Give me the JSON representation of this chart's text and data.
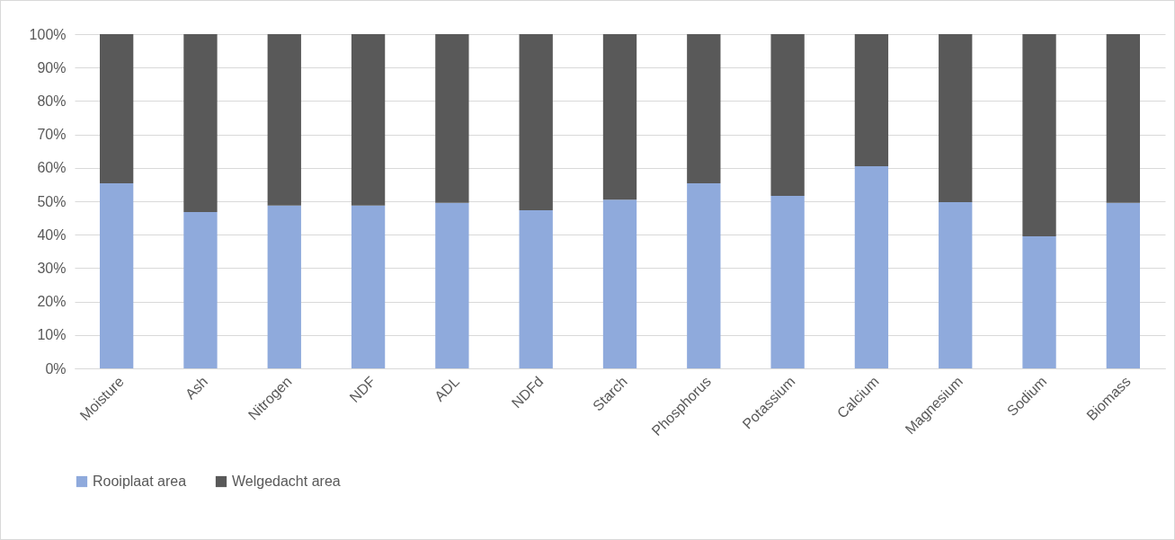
{
  "chart_data": {
    "type": "bar",
    "stacked": true,
    "categories": [
      "Moisture",
      "Ash",
      "Nitrogen",
      "NDF",
      "ADL",
      "NDFd",
      "Starch",
      "Phosphorus",
      "Potassium",
      "Calcium",
      "Magnesium",
      "Sodium",
      "Biomass"
    ],
    "series": [
      {
        "name": "Rooiplaat area",
        "color": "#8faadc",
        "values": [
          55.4,
          46.8,
          48.7,
          48.7,
          49.5,
          47.3,
          50.5,
          55.4,
          51.6,
          60.5,
          49.7,
          39.5,
          49.5
        ]
      },
      {
        "name": "Welgedacht area",
        "color": "#595959",
        "values": [
          44.6,
          53.2,
          51.3,
          51.3,
          50.5,
          52.7,
          49.5,
          44.6,
          48.4,
          39.5,
          50.3,
          60.5,
          50.5
        ]
      }
    ],
    "ylim": [
      0,
      100
    ],
    "yticks": [
      {
        "value": 0,
        "label": "0%"
      },
      {
        "value": 10,
        "label": "10%"
      },
      {
        "value": 20,
        "label": "20%"
      },
      {
        "value": 30,
        "label": "30%"
      },
      {
        "value": 40,
        "label": "40%"
      },
      {
        "value": 50,
        "label": "50%"
      },
      {
        "value": 60,
        "label": "60%"
      },
      {
        "value": 70,
        "label": "70%"
      },
      {
        "value": 80,
        "label": "80%"
      },
      {
        "value": 90,
        "label": "90%"
      },
      {
        "value": 100,
        "label": "100%"
      }
    ],
    "grid": "y",
    "legend": "bottom"
  }
}
